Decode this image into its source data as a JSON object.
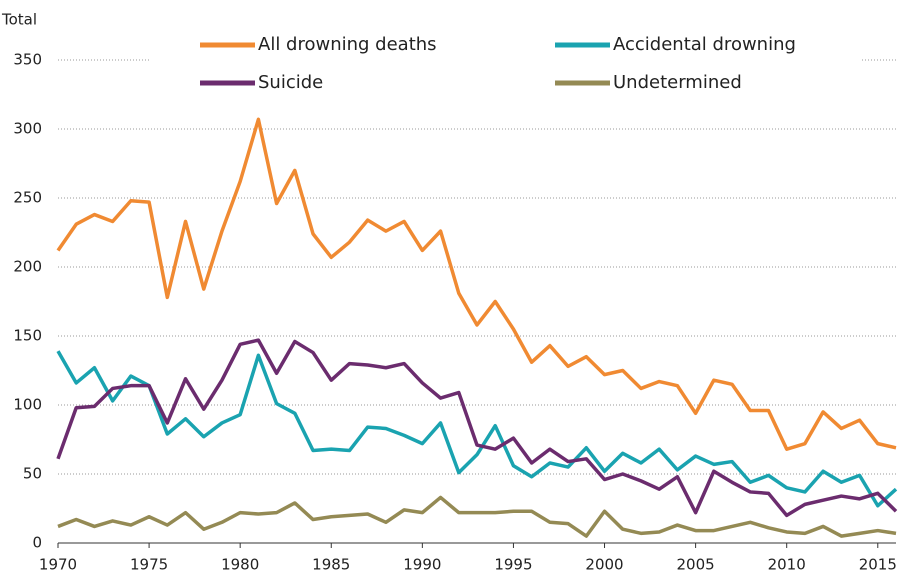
{
  "chart_data": {
    "type": "line",
    "ylabel": "Total",
    "x": [
      1970,
      1971,
      1972,
      1973,
      1974,
      1975,
      1976,
      1977,
      1978,
      1979,
      1980,
      1981,
      1982,
      1983,
      1984,
      1985,
      1986,
      1987,
      1988,
      1989,
      1990,
      1991,
      1992,
      1993,
      1994,
      1995,
      1996,
      1997,
      1998,
      1999,
      2000,
      2001,
      2002,
      2003,
      2004,
      2005,
      2006,
      2007,
      2008,
      2009,
      2010,
      2011,
      2012,
      2013,
      2014,
      2015,
      2016
    ],
    "series": [
      {
        "name": "All drowning deaths",
        "color": "#f08a32",
        "values": [
          212,
          231,
          238,
          233,
          248,
          247,
          178,
          233,
          184,
          226,
          262,
          307,
          246,
          270,
          224,
          207,
          218,
          234,
          226,
          233,
          212,
          226,
          181,
          158,
          175,
          155,
          131,
          143,
          128,
          135,
          122,
          125,
          112,
          117,
          114,
          94,
          118,
          115,
          96,
          96,
          68,
          72,
          95,
          83,
          89,
          72,
          69
        ]
      },
      {
        "name": "Accidental drowning",
        "color": "#1aa3b0",
        "values": [
          139,
          116,
          127,
          103,
          121,
          114,
          79,
          90,
          77,
          87,
          93,
          136,
          101,
          94,
          67,
          68,
          67,
          84,
          83,
          78,
          72,
          87,
          51,
          64,
          85,
          56,
          48,
          58,
          55,
          69,
          52,
          65,
          58,
          68,
          53,
          63,
          57,
          59,
          44,
          49,
          40,
          37,
          52,
          44,
          49,
          27,
          39
        ]
      },
      {
        "name": "Suicide",
        "color": "#6b2c6e",
        "values": [
          61,
          98,
          99,
          112,
          114,
          114,
          87,
          119,
          97,
          118,
          144,
          147,
          123,
          146,
          138,
          118,
          130,
          129,
          127,
          130,
          116,
          105,
          109,
          71,
          68,
          76,
          58,
          68,
          59,
          61,
          46,
          50,
          45,
          39,
          48,
          22,
          52,
          44,
          37,
          36,
          20,
          28,
          31,
          34,
          32,
          36,
          23
        ]
      },
      {
        "name": "Undetermined",
        "color": "#948a54",
        "values": [
          12,
          17,
          12,
          16,
          13,
          19,
          13,
          22,
          10,
          15,
          22,
          21,
          22,
          29,
          17,
          19,
          20,
          21,
          15,
          24,
          22,
          33,
          22,
          22,
          22,
          23,
          23,
          15,
          14,
          5,
          23,
          10,
          7,
          8,
          13,
          9,
          9,
          12,
          15,
          11,
          8,
          7,
          12,
          5,
          7,
          9,
          7
        ]
      }
    ],
    "xlim": [
      1970,
      2016
    ],
    "xticks": [
      1970,
      1975,
      1980,
      1985,
      1990,
      1995,
      2000,
      2005,
      2010,
      2015
    ],
    "ylim": [
      0,
      350
    ],
    "yticks": [
      0,
      50,
      100,
      150,
      200,
      250,
      300,
      350
    ],
    "grid": true
  }
}
